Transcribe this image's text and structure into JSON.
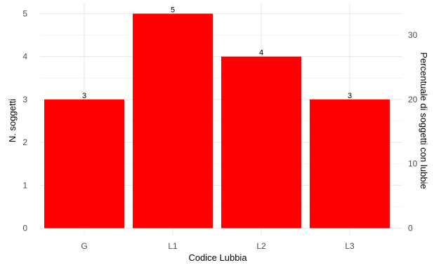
{
  "chart_data": {
    "type": "bar",
    "categories": [
      "G",
      "L1",
      "L2",
      "L3"
    ],
    "values": [
      3,
      5,
      4,
      3
    ],
    "data_labels": [
      "3",
      "5",
      "4",
      "3"
    ],
    "xlabel": "Codice Lubbia",
    "ylabel": "N. soggetti",
    "ylabel_secondary": "Percentuale di soggetti con lubbie",
    "ylim": [
      0,
      5
    ],
    "yticks": [
      0,
      1,
      2,
      3,
      4,
      5
    ],
    "ylim_secondary": [
      0,
      33.33
    ],
    "yticks_secondary": [
      0,
      10,
      20,
      30
    ],
    "grid": true,
    "bar_color": "#ff0000",
    "grid_color": "#e6e6e6"
  }
}
